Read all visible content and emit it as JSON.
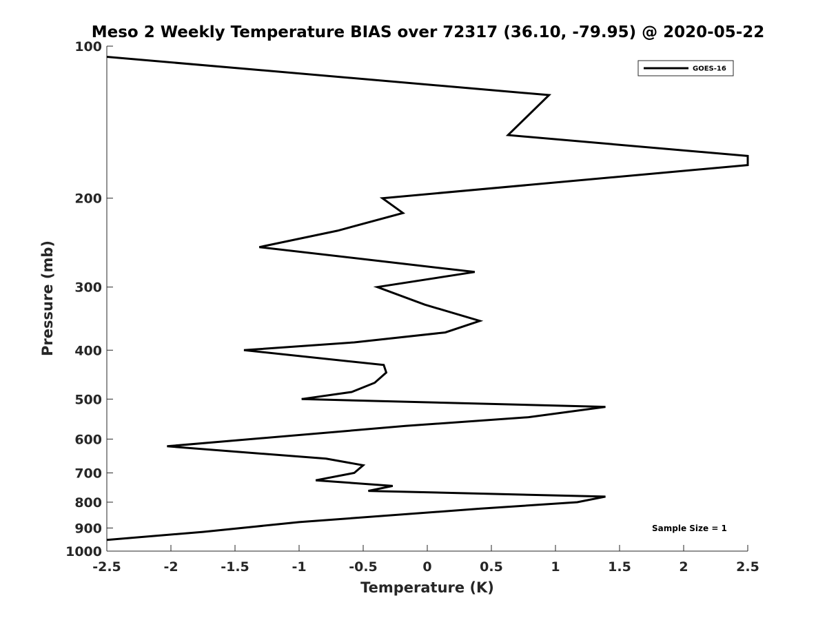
{
  "chart_data": {
    "type": "line",
    "title": "Meso 2 Weekly Temperature BIAS over 72317 (36.10, -79.95) @ 2020-05-22",
    "xlabel": "Temperature (K)",
    "ylabel": "Pressure (mb)",
    "xlim": [
      -2.5,
      2.5
    ],
    "ylim": [
      100,
      1000
    ],
    "y_scale": "log",
    "y_reversed": true,
    "x_ticks": [
      "-2.5",
      "-2",
      "-1.5",
      "-1",
      "-0.5",
      "0",
      "0.5",
      "1",
      "1.5",
      "2",
      "2.5"
    ],
    "y_ticks": [
      "100",
      "200",
      "300",
      "400",
      "500",
      "600",
      "700",
      "800",
      "900",
      "1000"
    ],
    "grid": false,
    "legend_position": "top-right",
    "annotation": "Sample Size = 1",
    "line_color": "#000000",
    "series": [
      {
        "name": "GOES-16",
        "x": [
          -2.5,
          0.95,
          0.63,
          2.5,
          2.5,
          -0.35,
          -0.19,
          -0.7,
          -1.31,
          0.37,
          -0.39,
          -0.02,
          0.41,
          0.14,
          -0.57,
          -1.43,
          -0.34,
          -0.32,
          -0.41,
          -0.59,
          -0.98,
          1.39,
          0.79,
          -0.17,
          -2.03,
          -0.79,
          -0.5,
          -0.57,
          -0.87,
          -0.27,
          -0.46,
          1.39,
          1.17,
          0.41,
          -1.0,
          -1.75,
          -2.5
        ],
        "y": [
          105,
          125,
          150,
          165,
          172,
          200,
          214,
          232,
          250,
          280,
          300,
          325,
          350,
          369,
          386,
          400,
          428,
          443,
          464,
          484,
          500,
          518,
          543,
          565,
          620,
          656,
          676,
          700,
          724,
          743,
          760,
          780,
          800,
          824,
          876,
          916,
          950
        ]
      }
    ]
  }
}
